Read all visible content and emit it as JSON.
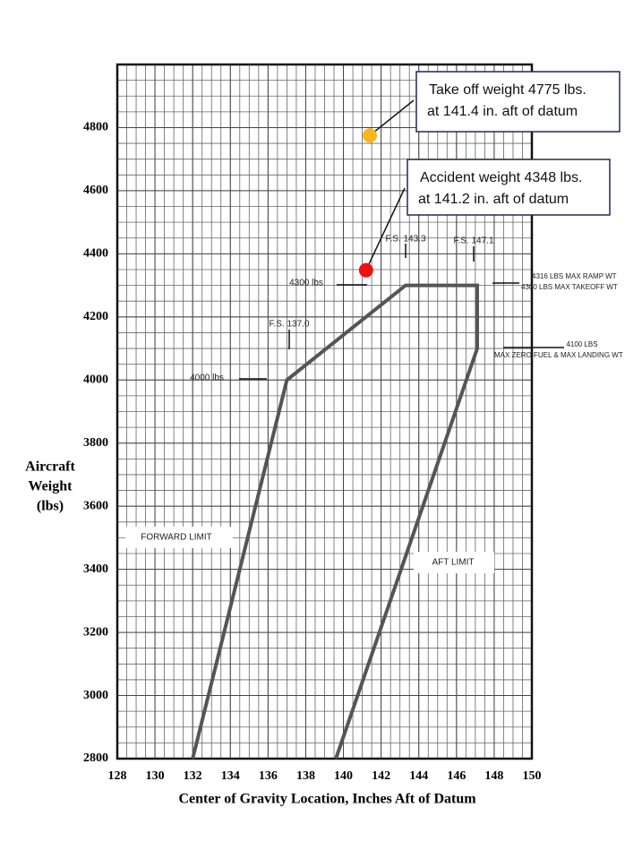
{
  "chart_data": {
    "type": "envelope",
    "y_label": [
      "Aircraft",
      "Weight",
      "(lbs)"
    ],
    "x_label": "Center of Gravity Location, Inches Aft of Datum",
    "xlim": [
      128,
      150
    ],
    "xticks": [
      128,
      130,
      132,
      134,
      136,
      138,
      140,
      142,
      144,
      146,
      148,
      150
    ],
    "ylim": [
      2800,
      5000
    ],
    "yticks": [
      2800,
      3000,
      3200,
      3400,
      3600,
      3800,
      4000,
      4200,
      4400,
      4600,
      4800
    ],
    "grid": true,
    "minor_grid_step": [
      0.5,
      50
    ],
    "envelope": {
      "color": "#555555",
      "x": [
        132.0,
        137.0,
        143.3,
        147.1,
        147.1,
        139.6
      ],
      "y": [
        2800,
        4000,
        4300,
        4300,
        4100,
        2800
      ]
    },
    "points": [
      {
        "x": 141.4,
        "y": 4775,
        "color": "#f7b718"
      },
      {
        "x": 141.2,
        "y": 4348,
        "color": "#ee1111"
      }
    ],
    "callouts": [
      {
        "lines": [
          "Take off weight 4775 lbs.",
          "at 141.4 in. aft of datum"
        ]
      },
      {
        "lines": [
          "Accident weight 4348 lbs.",
          "at 141.2 in. aft of datum"
        ]
      }
    ],
    "annotations": [
      "F.S. 143.3",
      "F.S. 147.1",
      "F.S. 137.0",
      "4300 lbs",
      "4000 lbs",
      "4316 LBS  MAX RAMP WT",
      "4300 LBS  MAX TAKEOFF WT",
      "4100 LBS",
      "MAX ZERO FUEL & MAX LANDING WT",
      "FORWARD LIMIT",
      "AFT LIMIT"
    ]
  }
}
